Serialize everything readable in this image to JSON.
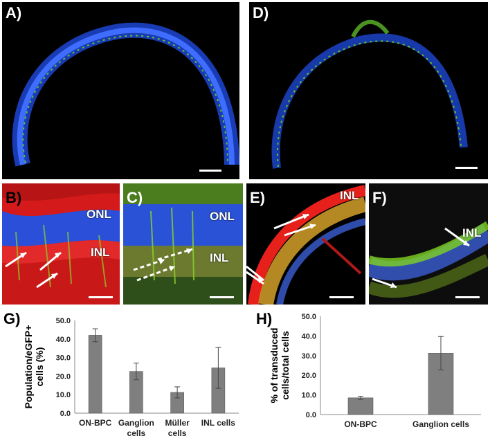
{
  "panels": {
    "a": {
      "label": "A)"
    },
    "b": {
      "label": "B)",
      "tissue": [
        "ONL",
        "INL"
      ]
    },
    "c": {
      "label": "C)",
      "tissue": [
        "ONL",
        "INL"
      ]
    },
    "d": {
      "label": "D)"
    },
    "e": {
      "label": "E)",
      "tissue": [
        "INL"
      ]
    },
    "f": {
      "label": "F)",
      "tissue": [
        "INL"
      ]
    },
    "g": {
      "label": "G)"
    },
    "h": {
      "label": "H)"
    }
  },
  "colors": {
    "bar": "#7f7f7f",
    "dapi": "#2a5bff",
    "egfp": "#7fd321",
    "red": "#e8201c"
  },
  "chart_data": [
    {
      "type": "bar",
      "panel": "G)",
      "categories": [
        "ON-BPC",
        "Ganglion cells",
        "Müller cells",
        "INL cells"
      ],
      "category_lines": [
        [
          "ON-BPC"
        ],
        [
          "Ganglion",
          "cells"
        ],
        [
          "Müller",
          "cells"
        ],
        [
          "INL cells"
        ]
      ],
      "values": [
        42.0,
        22.5,
        11.2,
        24.4
      ],
      "errors": [
        3.5,
        4.5,
        3.0,
        11.0
      ],
      "ylabel_lines": [
        "Population/eGFP+",
        "cells (%)"
      ],
      "ylim": [
        0,
        50
      ],
      "yticks": [
        "0.0",
        "10.0",
        "20.0",
        "30.0",
        "40.0",
        "50.0"
      ],
      "grid": false
    },
    {
      "type": "bar",
      "panel": "H)",
      "categories": [
        "ON-BPC",
        "Ganglion cells"
      ],
      "category_lines": [
        [
          "ON-BPC"
        ],
        [
          "Ganglion cells"
        ]
      ],
      "values": [
        8.5,
        31.2
      ],
      "errors": [
        0.8,
        8.5
      ],
      "ylabel_lines": [
        "% of transduced",
        "cells/total cells"
      ],
      "ylim": [
        0,
        50
      ],
      "yticks": [
        "0.0",
        "10.0",
        "20.0",
        "30.0",
        "40.0",
        "50.0"
      ],
      "grid": false
    }
  ]
}
